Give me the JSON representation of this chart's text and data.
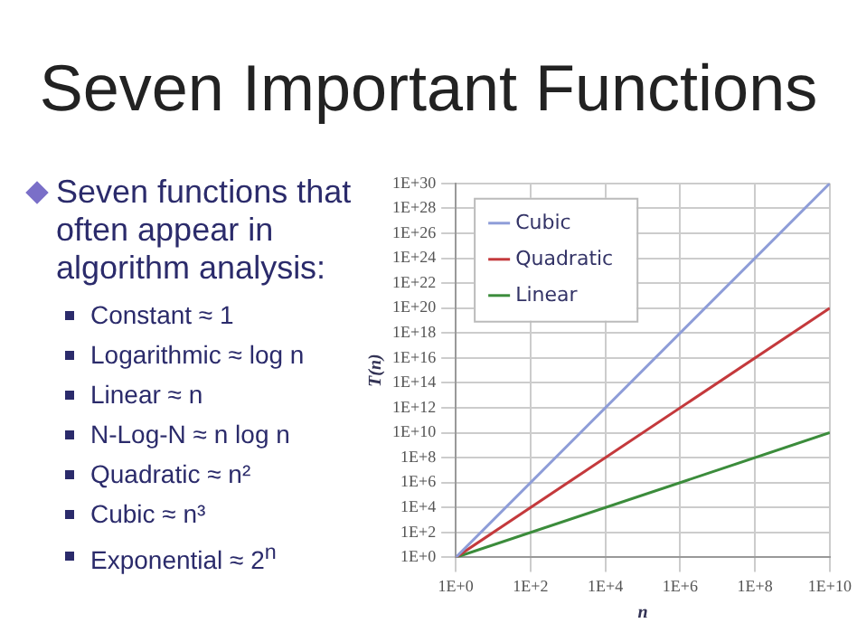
{
  "chart_data": {
    "type": "line",
    "title": "Seven Important Functions",
    "annotations": [
      "Seven functions that often appear in algorithm analysis:",
      "Constant ≈ 1",
      "Logarithmic ≈ log n",
      "Linear ≈ n",
      "N-Log-N ≈ n log n",
      "Quadratic ≈ n²",
      "Cubic ≈ n³",
      "Exponential ≈ 2$^{n}$"
    ],
    "xlabel": "n",
    "ylabel": "T(n)",
    "x": [
      1,
      10000000000
    ],
    "series": [
      {
        "name": "Cubic",
        "color": "#8e9dd8",
        "values": [
          1,
          1e+30
        ]
      },
      {
        "name": "Quadratic",
        "color": "#c4393c",
        "values": [
          1,
          1e+20
        ]
      },
      {
        "name": "Linear",
        "color": "#3b8c3b",
        "values": [
          1,
          10000000000
        ]
      }
    ],
    "log": "xy",
    "xlim": [
      1,
      10000000000
    ],
    "ylim": [
      1,
      1e+30
    ],
    "xticks": [
      {
        "value": 1,
        "label": "1E+0"
      },
      {
        "value": 100,
        "label": "1E+2"
      },
      {
        "value": 10000,
        "label": "1E+4"
      },
      {
        "value": 1000000,
        "label": "1E+6"
      },
      {
        "value": 100000000,
        "label": "1E+8"
      },
      {
        "value": 10000000000,
        "label": "1E+10"
      }
    ],
    "yticks": [
      {
        "value": 1,
        "label": "1E+0"
      },
      {
        "value": 100,
        "label": "1E+2"
      },
      {
        "value": 10000,
        "label": "1E+4"
      },
      {
        "value": 1000000,
        "label": "1E+6"
      },
      {
        "value": 100000000,
        "label": "1E+8"
      },
      {
        "value": 10000000000,
        "label": "1E+10"
      },
      {
        "value": 1000000000000.0,
        "label": "1E+12"
      },
      {
        "value": 100000000000000.0,
        "label": "1E+14"
      },
      {
        "value": 1e+16,
        "label": "1E+16"
      },
      {
        "value": 1e+18,
        "label": "1E+18"
      },
      {
        "value": 1e+20,
        "label": "1E+20"
      },
      {
        "value": 1e+22,
        "label": "1E+22"
      },
      {
        "value": 1e+24,
        "label": "1E+24"
      },
      {
        "value": 1e+26,
        "label": "1E+26"
      },
      {
        "value": 1e+28,
        "label": "1E+28"
      },
      {
        "value": 1e+30,
        "label": "1E+30"
      }
    ],
    "grid": true,
    "legend": "top left",
    "marker": "none",
    "line_style": "solid"
  }
}
